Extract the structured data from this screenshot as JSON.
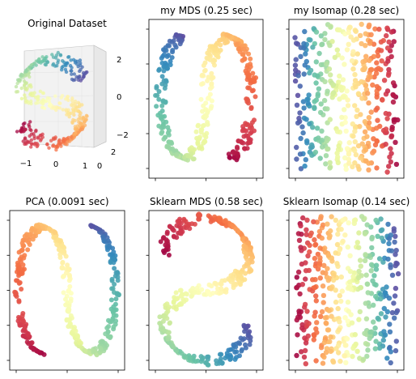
{
  "chart_data": [
    {
      "type": "scatter",
      "projection": "3d",
      "title": "Original Dataset",
      "x_ticks": [
        "−1",
        "0",
        "1"
      ],
      "y_ticks": [
        "0",
        "2"
      ],
      "z_ticks": [
        "2",
        "0",
        "−2"
      ],
      "colormap": "Spectral",
      "shape": "S-curve",
      "n_points": 1000
    },
    {
      "type": "scatter",
      "title": "my MDS (0.25 sec)",
      "colormap": "Spectral",
      "shape": "S-curve, rotated",
      "n_points": 1000
    },
    {
      "type": "scatter",
      "title": "my Isomap (0.28 sec)",
      "colormap": "Spectral",
      "shape": "unrolled vertical strip",
      "n_points": 1000
    },
    {
      "type": "scatter",
      "title": "PCA (0.0091 sec)",
      "colormap": "Spectral",
      "shape": "S-curve, mirrored",
      "n_points": 1000
    },
    {
      "type": "scatter",
      "title": "Sklearn MDS (0.58 sec)",
      "colormap": "Spectral",
      "shape": "S-curve, rotated",
      "n_points": 1000
    },
    {
      "type": "scatter",
      "title": "Sklearn Isomap (0.14 sec)",
      "colormap": "Spectral",
      "shape": "unrolled vertical strip",
      "n_points": 1000
    }
  ],
  "colors": {
    "spectral": [
      "#9e0142",
      "#d53e4f",
      "#f46d43",
      "#fdae61",
      "#fee08b",
      "#ffffbf",
      "#e6f598",
      "#abdda4",
      "#66c2a5",
      "#3288bd",
      "#5e4fa2"
    ],
    "axes_edge": "#000000",
    "pane": "#f2f2f2",
    "pane_grid": "#d9d9d9"
  }
}
